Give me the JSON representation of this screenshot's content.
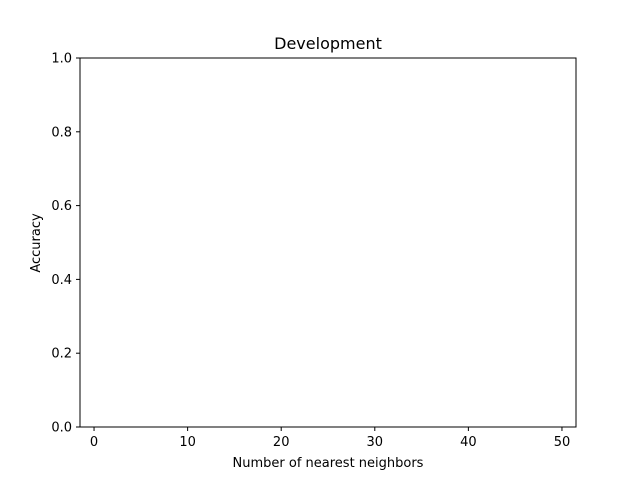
{
  "chart_data": {
    "type": "line",
    "title": "Development",
    "xlabel": "Number of nearest neighbors",
    "ylabel": "Accuracy",
    "xlim": [
      -1.5,
      51.5
    ],
    "ylim": [
      0.0,
      1.0
    ],
    "xticks": [
      0,
      10,
      20,
      30,
      40,
      50
    ],
    "yticks": [
      0.0,
      0.2,
      0.4,
      0.6,
      0.8,
      1.0
    ],
    "xtick_labels": [
      "0",
      "10",
      "20",
      "30",
      "40",
      "50"
    ],
    "ytick_labels": [
      "0.0",
      "0.2",
      "0.4",
      "0.6",
      "0.8",
      "1.0"
    ],
    "grid": false,
    "series": []
  }
}
